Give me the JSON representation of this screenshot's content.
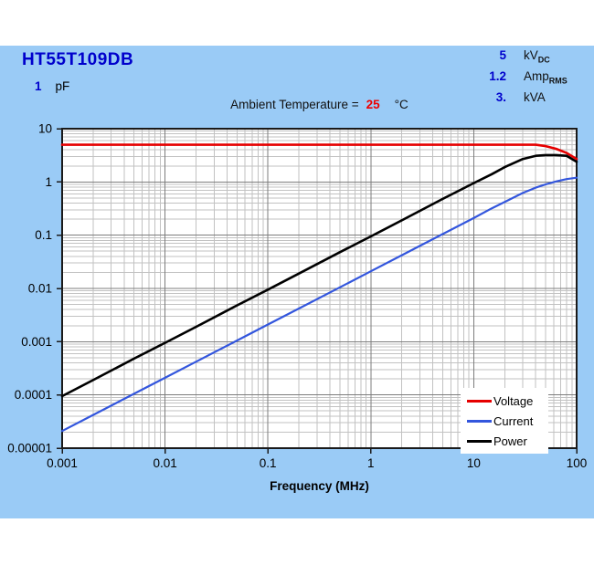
{
  "header": {
    "part_number": "HT55T109DB",
    "capacitance": {
      "value": "1",
      "unit": "pF"
    },
    "ratings": [
      {
        "value": "5",
        "unit": "kV",
        "unit_sub": "DC"
      },
      {
        "value": "1.2",
        "unit": "Amp",
        "unit_sub": "RMS"
      },
      {
        "value": "3.",
        "unit": "kVA",
        "unit_sub": ""
      }
    ],
    "ambient": {
      "label": "Ambient Temperature =",
      "value": "25",
      "unit": "°C"
    }
  },
  "colors": {
    "panel_bg": "#9ACBF6",
    "accent_blue": "#0000CC",
    "alert_red": "#EE0000",
    "plot_bg": "#FFFFFF",
    "grid_minor": "#C2C2C2",
    "grid_major": "#7D7D7D",
    "plot_border": "#1A1A1A"
  },
  "chart_data": {
    "type": "line",
    "title": "",
    "xlabel": "Frequency (MHz)",
    "ylabel": "",
    "x_axis": {
      "scale": "log",
      "range": [
        0.001,
        100
      ],
      "ticks": [
        0.001,
        0.01,
        0.1,
        1,
        10,
        100
      ],
      "tick_labels": [
        "0.001",
        "0.01",
        "0.1",
        "1",
        "10",
        "100"
      ],
      "label": "Frequency (MHz)"
    },
    "y_axis": {
      "scale": "log",
      "range": [
        1e-05,
        10
      ],
      "ticks": [
        10,
        1,
        0.1,
        0.01,
        0.001,
        0.0001,
        1e-05
      ],
      "tick_labels": [
        "10",
        "1",
        "0.1",
        "0.01",
        "0.001",
        "0.0001",
        "0.00001"
      ],
      "label": ""
    },
    "grid": "log major and minor, on",
    "legend_position": "bottom-right inside plot",
    "series": [
      {
        "name": "Voltage",
        "unit": "kV DC",
        "color": "#E60000",
        "x": [
          0.001,
          0.002,
          0.005,
          0.01,
          0.02,
          0.05,
          0.1,
          0.2,
          0.5,
          1,
          2,
          5,
          10,
          15,
          20,
          30,
          40,
          50,
          63,
          80,
          100
        ],
        "y": [
          5,
          5,
          5,
          5,
          5,
          5,
          5,
          5,
          5,
          5,
          5,
          5,
          5,
          5,
          5,
          5,
          5,
          4.7,
          4.2,
          3.5,
          2.7
        ]
      },
      {
        "name": "Current",
        "unit": "Amp RMS",
        "color": "#3356DD",
        "x": [
          0.001,
          0.002,
          0.005,
          0.01,
          0.02,
          0.05,
          0.1,
          0.2,
          0.5,
          1,
          2,
          5,
          10,
          15,
          20,
          30,
          40,
          50,
          63,
          80,
          100
        ],
        "y": [
          2.1e-05,
          4.2e-05,
          0.000105,
          0.00021,
          0.00042,
          0.00105,
          0.0021,
          0.0042,
          0.0105,
          0.021,
          0.042,
          0.105,
          0.21,
          0.32,
          0.42,
          0.62,
          0.78,
          0.9,
          1.02,
          1.13,
          1.2
        ]
      },
      {
        "name": "Power",
        "unit": "kVA",
        "color": "#000000",
        "x": [
          0.001,
          0.002,
          0.005,
          0.01,
          0.02,
          0.05,
          0.1,
          0.2,
          0.5,
          1,
          2,
          5,
          10,
          15,
          20,
          30,
          40,
          50,
          63,
          80,
          100
        ],
        "y": [
          9.5e-05,
          0.00019,
          0.00048,
          0.00095,
          0.0019,
          0.0048,
          0.0095,
          0.019,
          0.048,
          0.095,
          0.19,
          0.48,
          0.95,
          1.4,
          1.9,
          2.7,
          3.1,
          3.2,
          3.2,
          3.1,
          2.4
        ]
      }
    ]
  }
}
